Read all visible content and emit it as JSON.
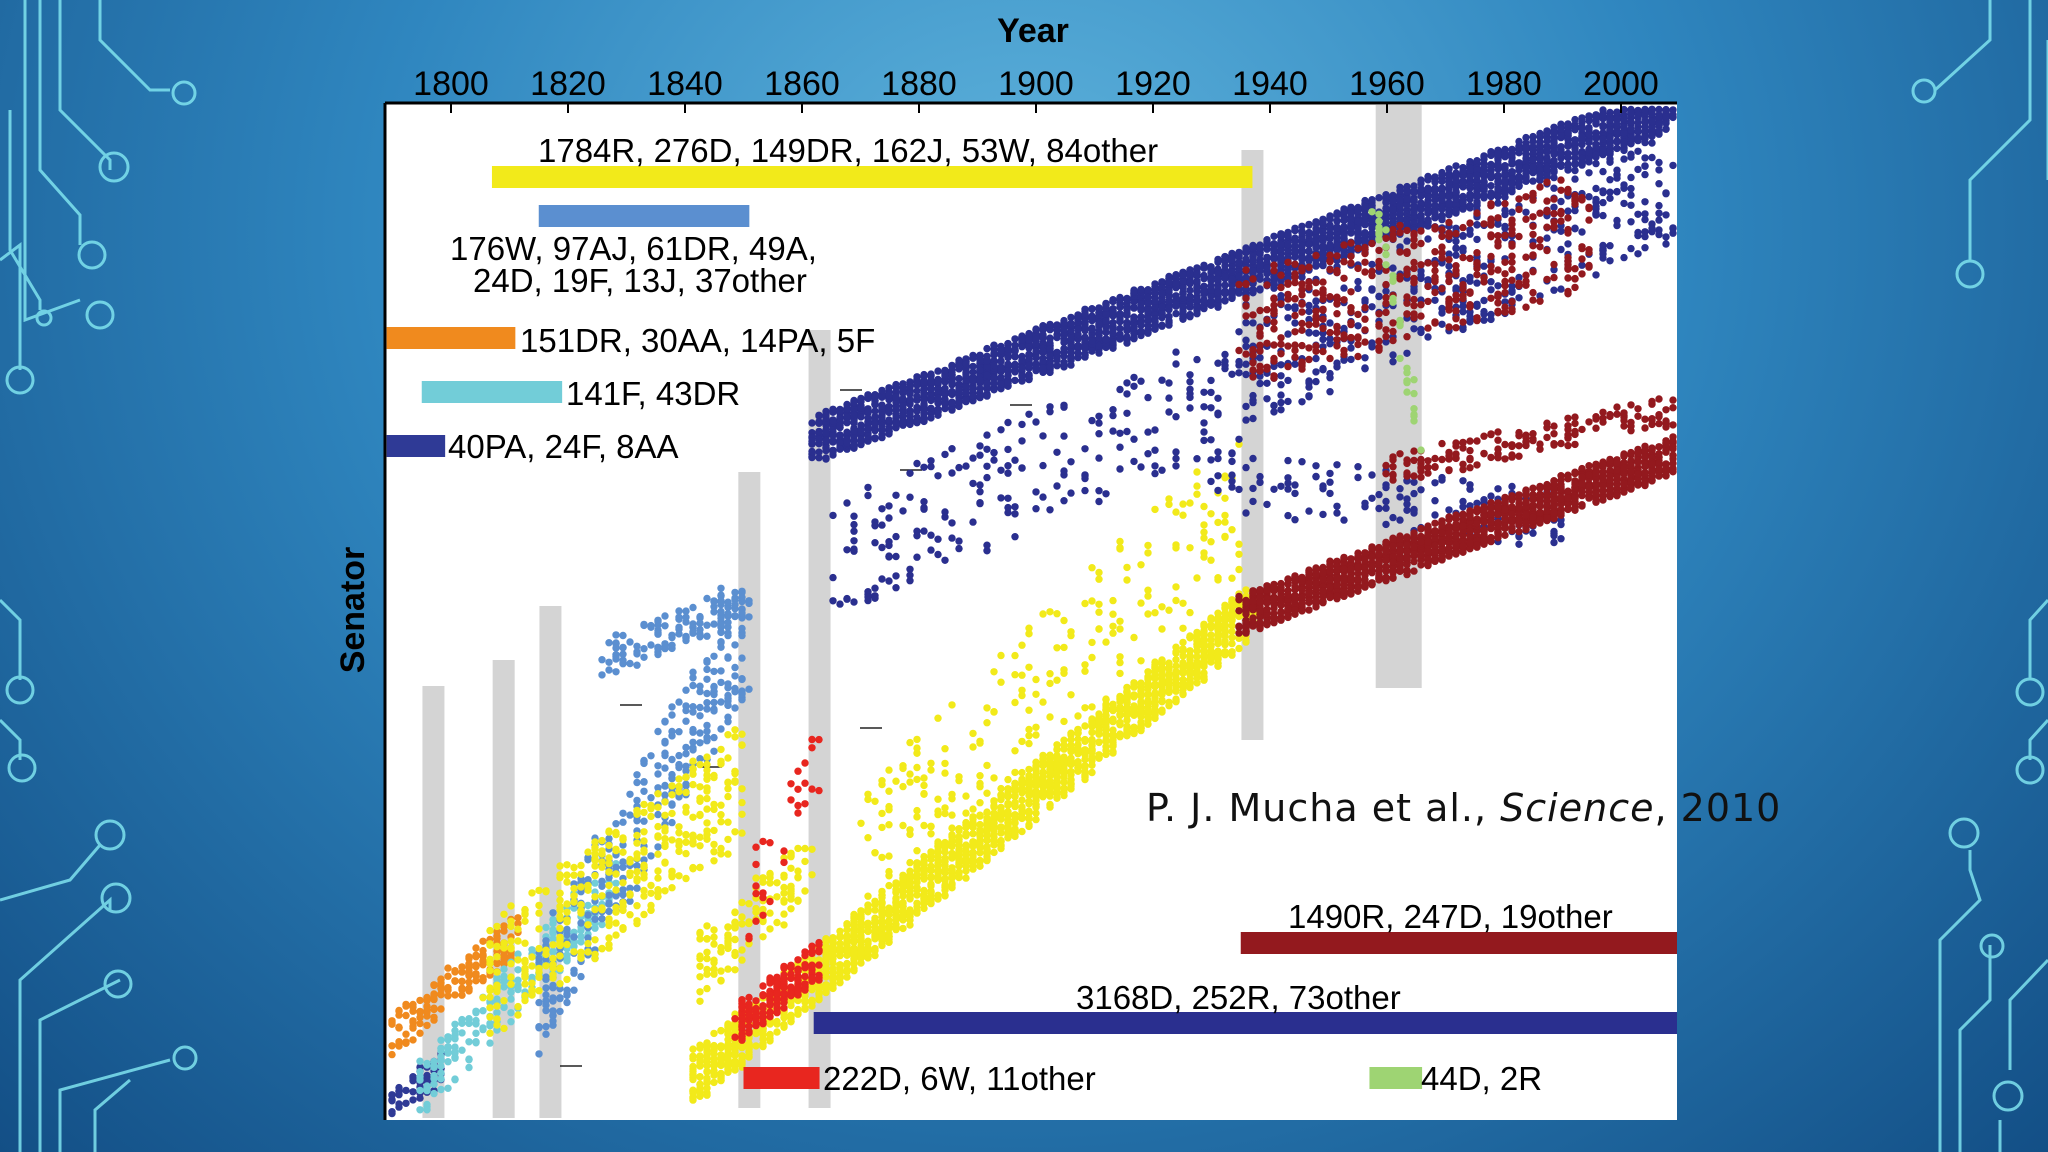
{
  "chart_data": {
    "type": "scatter",
    "xlabel": "Year",
    "ylabel": "Senator",
    "xlim": [
      1789,
      2010
    ],
    "x_ticks": [
      1800,
      1820,
      1840,
      1860,
      1880,
      1900,
      1920,
      1940,
      1960,
      1980,
      2000
    ],
    "grid": false,
    "series": [
      {
        "id": "orange",
        "color": "#f08a1e",
        "label": "151DR, 30AA, 14PA, 5F",
        "x_range": [
          1789,
          1811
        ]
      },
      {
        "id": "cyan",
        "color": "#72cdd8",
        "label": "141F, 43DR",
        "x_range": [
          1795,
          1828
        ]
      },
      {
        "id": "navy-early",
        "color": "#2f3a96",
        "label": "40PA, 24F, 8AA",
        "x_range": [
          1789,
          1799
        ]
      },
      {
        "id": "light-blue",
        "color": "#5b8fd0",
        "label": "176W, 97AJ, 61DR, 49A, 24D, 19F, 13J, 37other",
        "x_range": [
          1815,
          1851
        ]
      },
      {
        "id": "yellow",
        "color": "#f2ea1a",
        "label": "1784R, 276D, 149DR, 162J, 53W, 84other",
        "x_range": [
          1807,
          1937
        ]
      },
      {
        "id": "red",
        "color": "#e8261f",
        "label": "222D, 6W, 11other",
        "x_range": [
          1849,
          1863
        ]
      },
      {
        "id": "navy",
        "color": "#2a2f8f",
        "label": "3168D, 252R, 73other",
        "x_range": [
          1862,
          2010
        ]
      },
      {
        "id": "dark-red",
        "color": "#93191e",
        "label": "1490R, 247D, 19other",
        "x_range": [
          1935,
          2010
        ]
      },
      {
        "id": "light-green",
        "color": "#9ed473",
        "label": "44D, 2R",
        "x_range": [
          1958,
          1966
        ]
      }
    ],
    "highlight_bands_years": [
      1797,
      1809,
      1817,
      1851,
      1863,
      1937,
      1962
    ]
  },
  "annotations": {
    "yellow_label": "1784R, 276D, 149DR, 162J, 53W, 84other",
    "lightblue_label_line1": "176W, 97AJ, 61DR, 49A,",
    "lightblue_label_line2": "24D, 19F, 13J, 37other",
    "orange_label": "151DR, 30AA, 14PA, 5F",
    "cyan_label": "141F, 43DR",
    "navy_early_label": "40PA, 24F, 8AA",
    "darkred_label": "1490R, 247D, 19other",
    "navy_label": "3168D, 252R, 73other",
    "red_label": "222D, 6W, 11other",
    "green_label": "44D, 2R"
  },
  "citation": {
    "authors": "P. J. Mucha et al., ",
    "journal": "Science",
    "year": ", 2010"
  },
  "colors": {
    "background": "#2f86bf",
    "circuit": "#7fe3ef",
    "plot_bg": "#ffffff",
    "band": "#cfcfcf"
  }
}
